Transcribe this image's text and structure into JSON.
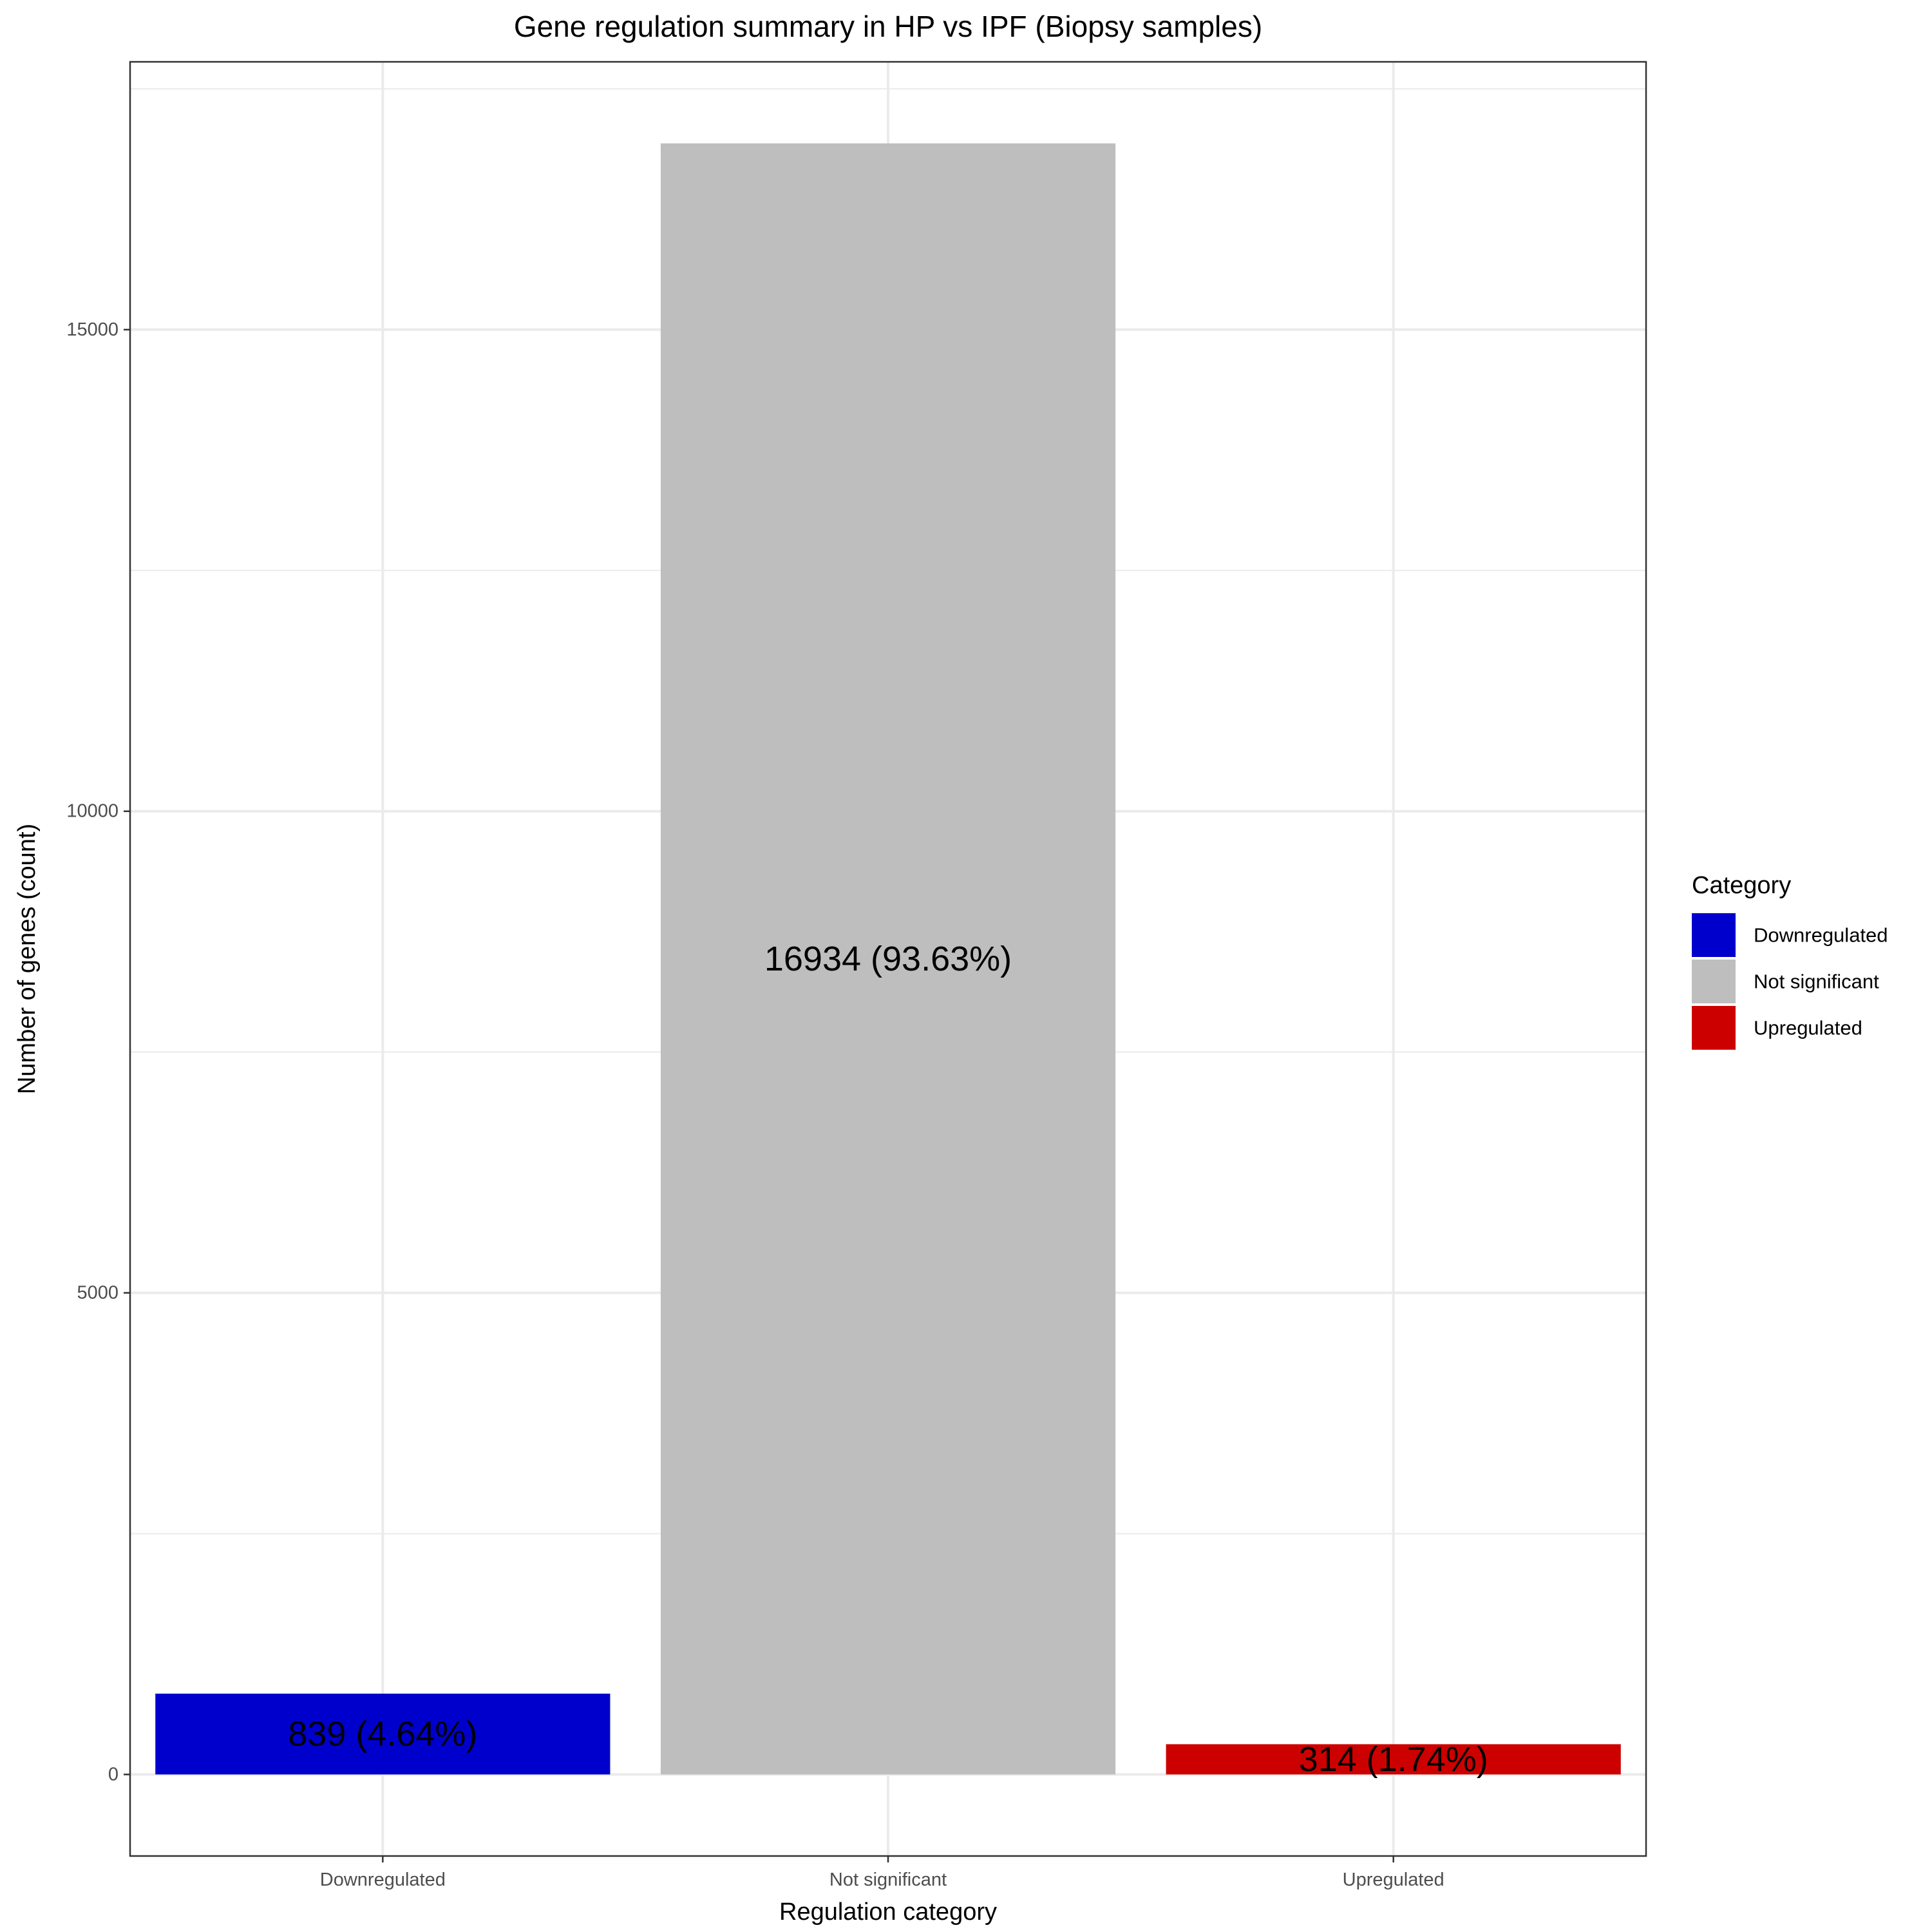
{
  "chart_data": {
    "type": "bar",
    "title": "Gene regulation summary in HP vs IPF (Biopsy samples)",
    "xlabel": "Regulation category",
    "ylabel": "Number of genes (count)",
    "categories": [
      "Downregulated",
      "Not significant",
      "Upregulated"
    ],
    "values": [
      839,
      16934,
      314
    ],
    "data_labels": [
      "839 (4.64%)",
      "16934 (93.63%)",
      "314 (1.74%)"
    ],
    "colors": [
      "#0000CD",
      "#BEBEBE",
      "#CD0000"
    ],
    "ylim": [
      -846.7,
      17780.7
    ],
    "yticks": [
      0,
      5000,
      10000,
      15000
    ],
    "ytick_labels": [
      "0",
      "5000",
      "10000",
      "15000"
    ],
    "grid": true,
    "legend": {
      "title": "Category",
      "position": "right",
      "entries": [
        "Downregulated",
        "Not significant",
        "Upregulated"
      ]
    }
  }
}
